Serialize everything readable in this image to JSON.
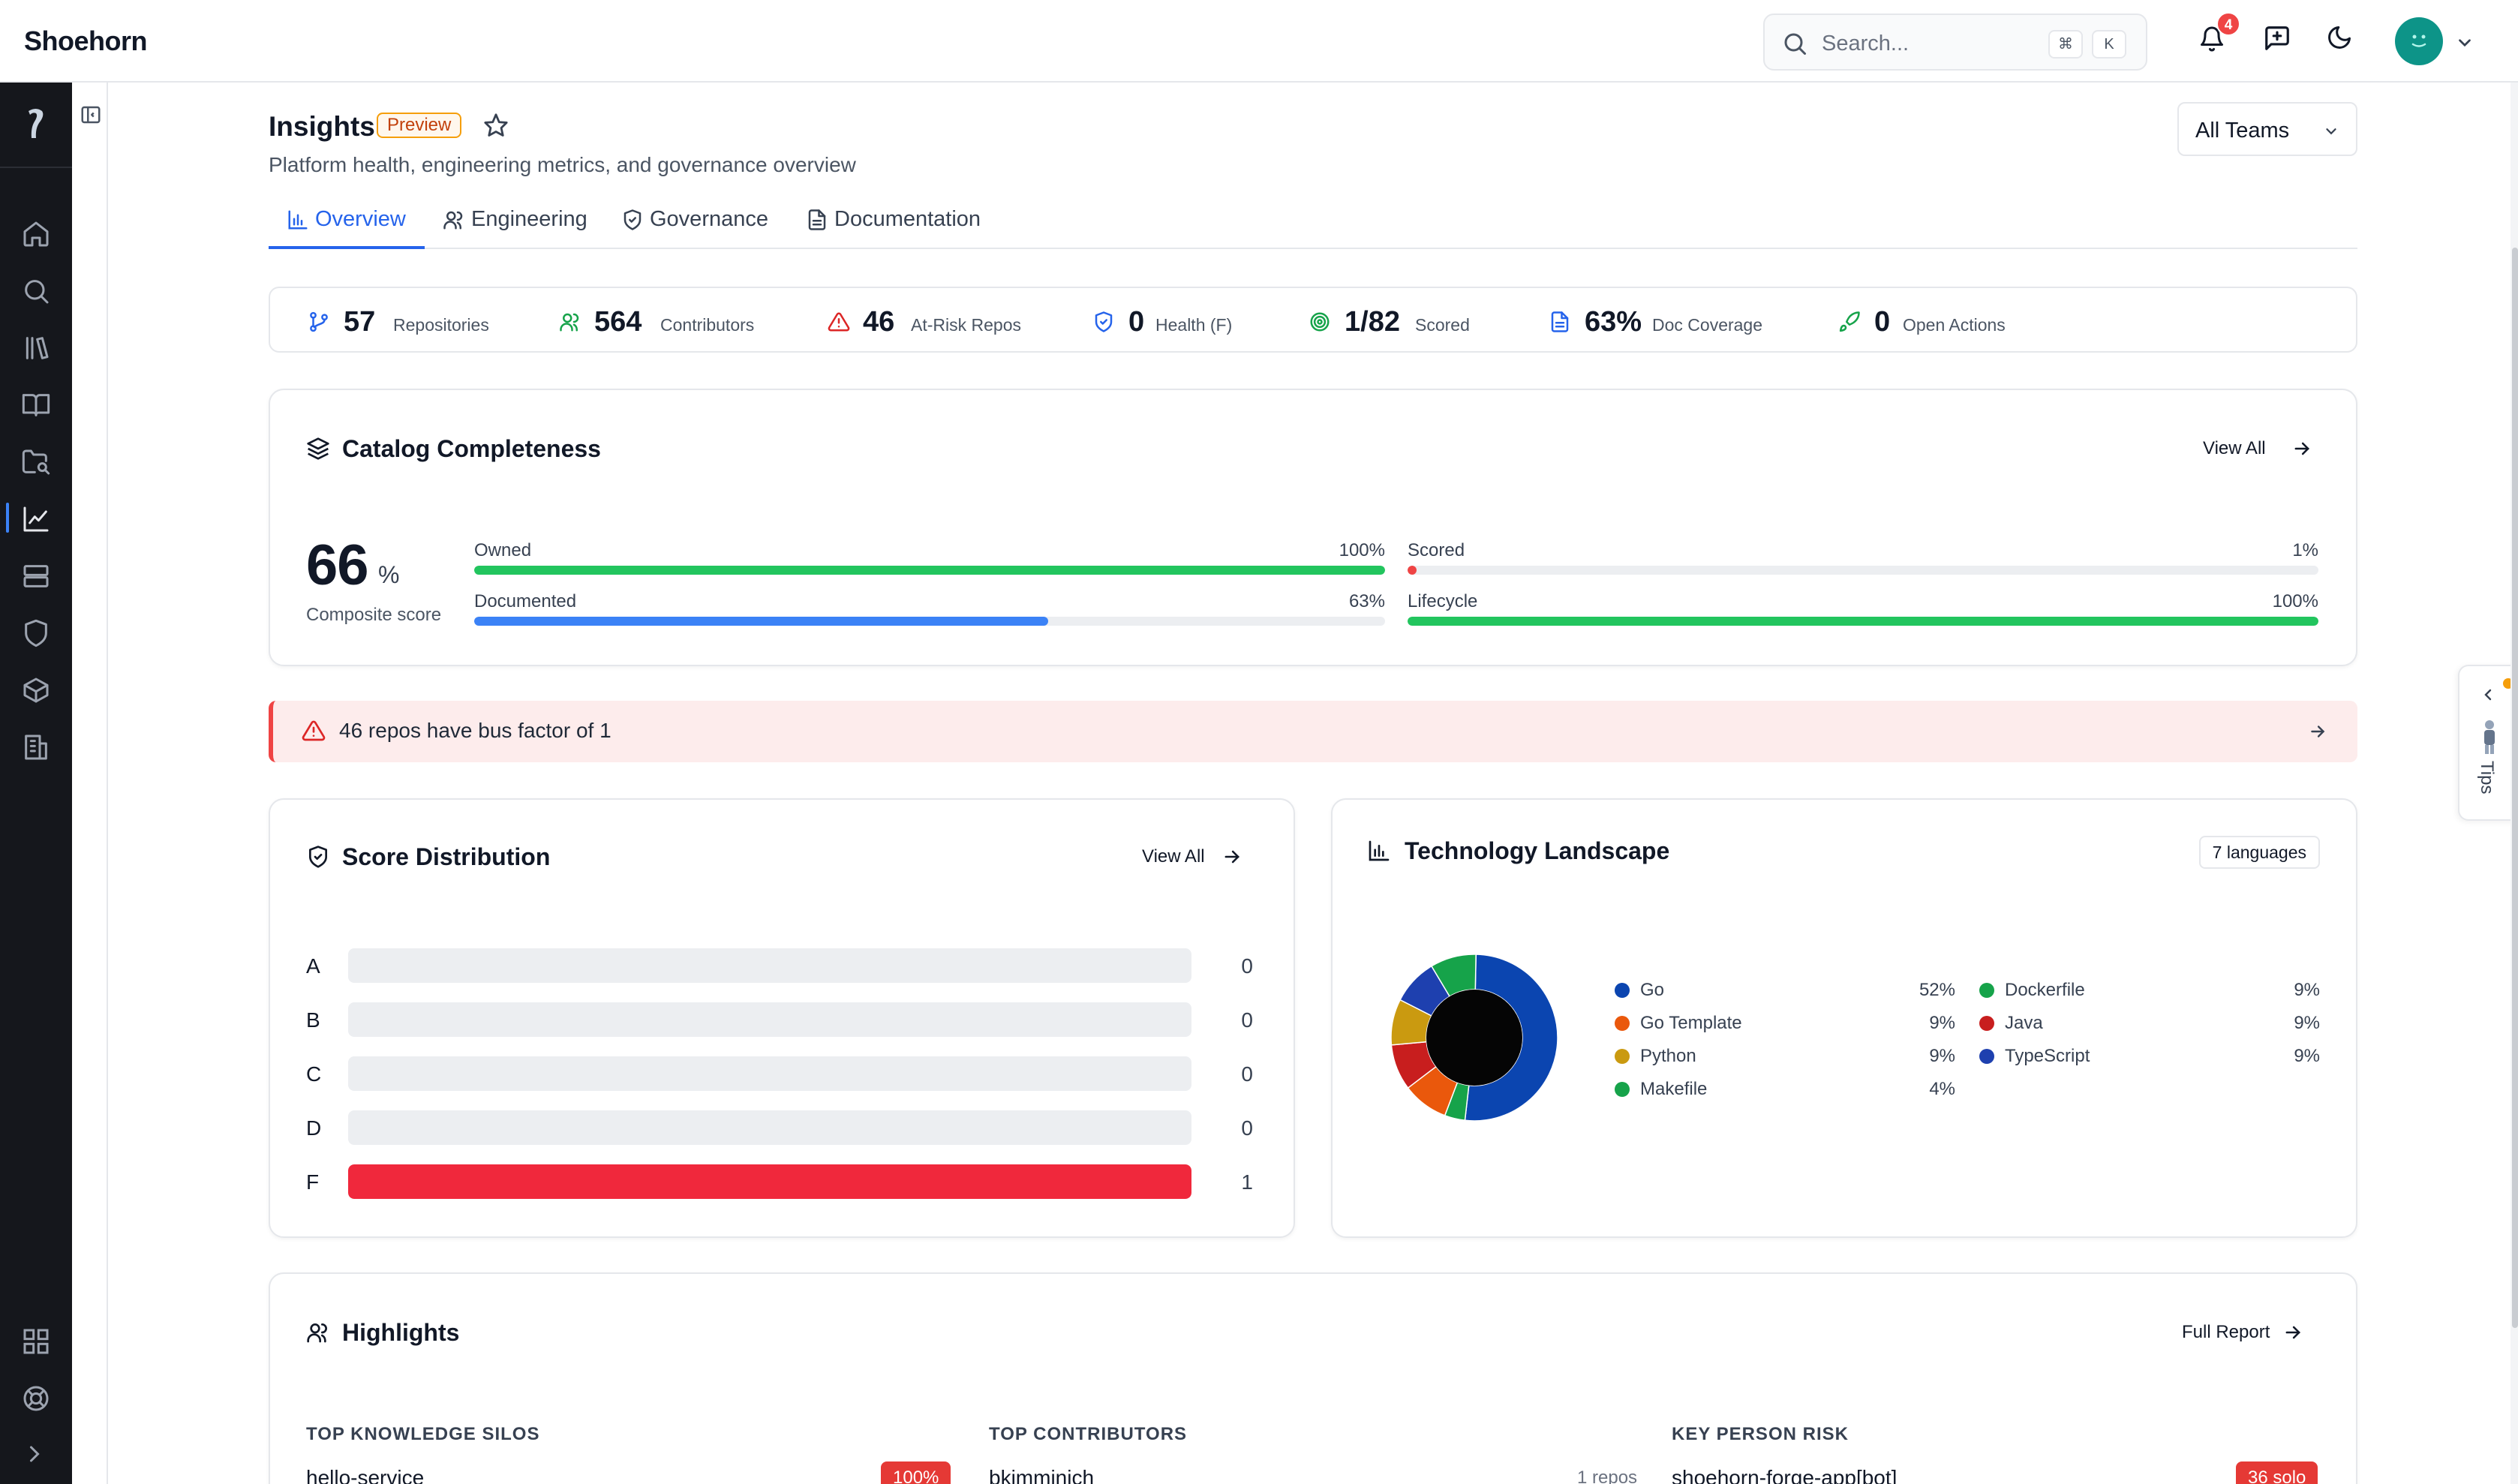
{
  "app": {
    "brand": "Shoehorn"
  },
  "topbar": {
    "search_placeholder": "Search...",
    "shortcut_keys": [
      "⌘",
      "K"
    ],
    "notification_count": "4",
    "icons": [
      "search-icon",
      "bell-icon",
      "feedback-icon",
      "moon-icon",
      "avatar",
      "chevron-down-icon"
    ]
  },
  "sidebar": {
    "items": [
      {
        "name": "home",
        "icon": "home-icon"
      },
      {
        "name": "search",
        "icon": "search-icon"
      },
      {
        "name": "library",
        "icon": "library-icon"
      },
      {
        "name": "docs",
        "icon": "book-icon"
      },
      {
        "name": "folder-search",
        "icon": "folder-search-icon"
      },
      {
        "name": "insights",
        "icon": "chart-line-icon",
        "active": true
      },
      {
        "name": "infrastructure",
        "icon": "server-icon"
      },
      {
        "name": "governance",
        "icon": "shield-icon"
      },
      {
        "name": "packages",
        "icon": "package-icon"
      },
      {
        "name": "organization",
        "icon": "building-icon"
      }
    ],
    "bottom_items": [
      {
        "name": "apps",
        "icon": "grid-icon"
      },
      {
        "name": "help",
        "icon": "lifebuoy-icon"
      },
      {
        "name": "expand",
        "icon": "chevron-right-icon"
      }
    ]
  },
  "page": {
    "title": "Insights",
    "badge": "Preview",
    "subtitle": "Platform health, engineering metrics, and governance overview",
    "team_select": "All Teams"
  },
  "tabs": [
    {
      "label": "Overview",
      "icon": "bar-chart-icon",
      "active": true
    },
    {
      "label": "Engineering",
      "icon": "users-icon"
    },
    {
      "label": "Governance",
      "icon": "shield-check-icon"
    },
    {
      "label": "Documentation",
      "icon": "file-text-icon"
    }
  ],
  "stats": [
    {
      "value": "57",
      "label": "Repositories",
      "icon": "git-branch-icon",
      "color": "#2563eb"
    },
    {
      "value": "564",
      "label": "Contributors",
      "icon": "users-icon",
      "color": "#16a34a"
    },
    {
      "value": "46",
      "label": "At-Risk Repos",
      "icon": "alert-triangle-icon",
      "color": "#dc2626"
    },
    {
      "value": "0",
      "label": "Health (F)",
      "icon": "shield-check-icon",
      "color": "#2563eb"
    },
    {
      "value": "1/82",
      "label": "Scored",
      "icon": "target-icon",
      "color": "#16a34a"
    },
    {
      "value": "63%",
      "label": "Doc Coverage",
      "icon": "file-text-icon",
      "color": "#2563eb"
    },
    {
      "value": "0",
      "label": "Open Actions",
      "icon": "rocket-icon",
      "color": "#16a34a"
    }
  ],
  "catalog": {
    "title": "Catalog Completeness",
    "link": "View All",
    "composite_value": "66",
    "composite_unit": "%",
    "composite_label": "Composite score",
    "metrics": [
      {
        "name": "Owned",
        "value": "100%",
        "percent": 100,
        "color": "#22c55e"
      },
      {
        "name": "Scored",
        "value": "1%",
        "percent": 1,
        "color": "#ef4444"
      },
      {
        "name": "Documented",
        "value": "63%",
        "percent": 63,
        "color": "#3b82f6"
      },
      {
        "name": "Lifecycle",
        "value": "100%",
        "percent": 100,
        "color": "#22c55e"
      }
    ]
  },
  "alert": {
    "text": "46 repos have bus factor of 1"
  },
  "score_distribution": {
    "title": "Score Distribution",
    "link": "View All",
    "grades": [
      {
        "grade": "A",
        "count": "0",
        "fraction": 0
      },
      {
        "grade": "B",
        "count": "0",
        "fraction": 0
      },
      {
        "grade": "C",
        "count": "0",
        "fraction": 0
      },
      {
        "grade": "D",
        "count": "0",
        "fraction": 0
      },
      {
        "grade": "F",
        "count": "1",
        "fraction": 1
      }
    ],
    "fail_color": "#f0283c"
  },
  "tech_landscape": {
    "title": "Technology Landscape",
    "count_badge": "7 languages",
    "languages": [
      {
        "name": "Go",
        "value": "52%",
        "percent": 52,
        "color": "#0b45b0"
      },
      {
        "name": "Dockerfile",
        "value": "9%",
        "percent": 9,
        "color": "#16a34a"
      },
      {
        "name": "Go Template",
        "value": "9%",
        "percent": 9,
        "color": "#ea580c"
      },
      {
        "name": "Java",
        "value": "9%",
        "percent": 9,
        "color": "#c81e1e"
      },
      {
        "name": "Python",
        "value": "9%",
        "percent": 9,
        "color": "#ca9a10"
      },
      {
        "name": "TypeScript",
        "value": "9%",
        "percent": 9,
        "color": "#1e40af"
      },
      {
        "name": "Makefile",
        "value": "4%",
        "percent": 4,
        "color": "#16a34a"
      }
    ]
  },
  "highlights": {
    "title": "Highlights",
    "link": "Full Report",
    "columns": [
      {
        "title": "TOP KNOWLEDGE SILOS",
        "first_row": "hello-service",
        "first_badge": "100%"
      },
      {
        "title": "TOP CONTRIBUTORS",
        "first_row": "bkimminich",
        "first_meta": "1 repos"
      },
      {
        "title": "KEY PERSON RISK",
        "first_row": "shoehorn-forge-app[bot]",
        "first_badge": "36 solo"
      }
    ]
  },
  "tips": {
    "label": "Tips"
  }
}
